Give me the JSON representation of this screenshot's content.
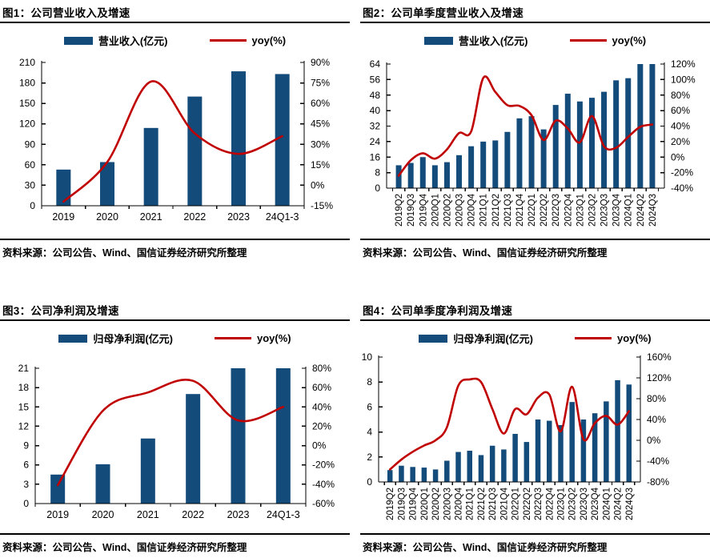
{
  "page": {
    "background": "#ffffff",
    "colors": {
      "bar": "#134B7A",
      "line": "#C00000",
      "axis": "#000000",
      "text": "#000000"
    }
  },
  "chart_data": [
    {
      "id": "fig1",
      "type": "bar+line",
      "title": "图1：公司营业收入及增速",
      "source": "资料来源：公司公告、Wind、国信证券经济研究所整理",
      "categories": [
        "2019",
        "2020",
        "2021",
        "2022",
        "2023",
        "24Q1-3"
      ],
      "series": [
        {
          "name": "营业收入(亿元)",
          "type": "bar",
          "axis": "left",
          "values": [
            53,
            64,
            114,
            160,
            197,
            193
          ]
        },
        {
          "name": "yoy(%)",
          "type": "line",
          "axis": "right",
          "values": [
            -12,
            17,
            76,
            38,
            23,
            36
          ]
        }
      ],
      "left_axis": {
        "min": 0,
        "max": 210,
        "step": 30,
        "ticks": [
          "0",
          "30",
          "60",
          "90",
          "120",
          "150",
          "180",
          "210"
        ]
      },
      "right_axis": {
        "min": -15,
        "max": 90,
        "step": 15,
        "ticks": [
          "-15%",
          "0%",
          "15%",
          "30%",
          "45%",
          "60%",
          "75%",
          "90%"
        ]
      },
      "rotate_x_labels": false,
      "legend_position": "top"
    },
    {
      "id": "fig2",
      "type": "bar+line",
      "title": "图2：公司单季度营业收入及增速",
      "source": "资料来源：公司公告、Wind、国信证券经济研究所整理",
      "categories": [
        "2019Q2",
        "2019Q3",
        "2019Q4",
        "2020Q1",
        "2020Q2",
        "2020Q3",
        "2020Q4",
        "2021Q1",
        "2021Q2",
        "2021Q3",
        "2021Q4",
        "2022Q1",
        "2022Q2",
        "2022Q3",
        "2022Q4",
        "2023Q1",
        "2023Q2",
        "2023Q3",
        "2023Q4",
        "2024Q1",
        "2024Q2",
        "2024Q3"
      ],
      "series": [
        {
          "name": "营业收入(亿元)",
          "type": "bar",
          "axis": "left",
          "values": [
            11.8,
            13.0,
            16.0,
            11.8,
            13.4,
            17.0,
            21.6,
            24.0,
            24.6,
            29.0,
            36.0,
            37.1,
            30.3,
            42.9,
            48.7,
            44.7,
            46.6,
            49.7,
            55.6,
            56.7,
            64.0,
            64.0
          ]
        },
        {
          "name": "yoy(%)",
          "type": "line",
          "axis": "right",
          "values": [
            -24,
            -4,
            5,
            -2,
            10,
            31,
            33,
            102,
            84,
            67,
            66,
            54,
            22,
            47,
            37,
            19,
            53,
            14,
            12,
            26,
            39,
            42
          ]
        }
      ],
      "left_axis": {
        "min": 0,
        "max": 64,
        "step": 8,
        "ticks": [
          "0",
          "8",
          "16",
          "24",
          "32",
          "40",
          "48",
          "56",
          "64"
        ]
      },
      "right_axis": {
        "min": -40,
        "max": 120,
        "step": 20,
        "ticks": [
          "-40%",
          "-20%",
          "0%",
          "20%",
          "40%",
          "60%",
          "80%",
          "100%",
          "120%"
        ]
      },
      "rotate_x_labels": true,
      "legend_position": "top"
    },
    {
      "id": "fig3",
      "type": "bar+line",
      "title": "图3：公司净利润及增速",
      "source": "资料来源：公司公告、Wind、国信证券经济研究所整理",
      "categories": [
        "2019",
        "2020",
        "2021",
        "2022",
        "2023",
        "24Q1-3"
      ],
      "series": [
        {
          "name": "归母净利润(亿元)",
          "type": "bar",
          "axis": "left",
          "values": [
            4.5,
            6.1,
            10.1,
            17.0,
            21.0,
            21.0
          ]
        },
        {
          "name": "yoy(%)",
          "type": "line",
          "axis": "right",
          "values": [
            -41,
            36,
            55,
            67,
            26,
            40
          ]
        }
      ],
      "left_axis": {
        "min": 0,
        "max": 21,
        "step": 3,
        "ticks": [
          "0",
          "3",
          "6",
          "9",
          "12",
          "15",
          "18",
          "21"
        ]
      },
      "right_axis": {
        "min": -60,
        "max": 80,
        "step": 20,
        "ticks": [
          "-60%",
          "-40%",
          "-20%",
          "0%",
          "20%",
          "40%",
          "60%",
          "80%"
        ]
      },
      "rotate_x_labels": false,
      "legend_position": "top"
    },
    {
      "id": "fig4",
      "type": "bar+line",
      "title": "图4：公司单季度净利润及增速",
      "source": "资料来源：公司公告、Wind、国信证券经济研究所整理",
      "categories": [
        "2019Q2",
        "2019Q3",
        "2019Q4",
        "2020Q1",
        "2020Q2",
        "2020Q3",
        "2020Q4",
        "2021Q1",
        "2021Q2",
        "2021Q3",
        "2021Q4",
        "2022Q1",
        "2022Q2",
        "2022Q3",
        "2022Q4",
        "2023Q1",
        "2023Q2",
        "2023Q3",
        "2023Q4",
        "2024Q1",
        "2024Q2",
        "2024Q3"
      ],
      "series": [
        {
          "name": "归母净利润(亿元)",
          "type": "bar",
          "axis": "left",
          "values": [
            0.95,
            1.3,
            1.2,
            1.15,
            1.0,
            1.7,
            2.4,
            2.5,
            2.15,
            2.9,
            2.6,
            3.85,
            3.2,
            5.0,
            4.9,
            4.55,
            6.4,
            5.0,
            5.5,
            6.45,
            8.15,
            7.8
          ]
        },
        {
          "name": "yoy(%)",
          "type": "line",
          "axis": "right",
          "values": [
            -56,
            -37,
            -22,
            -10,
            0,
            25,
            105,
            117,
            112,
            60,
            13,
            60,
            50,
            82,
            88,
            17,
            103,
            2,
            33,
            47,
            30,
            56
          ]
        }
      ],
      "left_axis": {
        "min": 0,
        "max": 10,
        "step": 2,
        "ticks": [
          "0",
          "2",
          "4",
          "6",
          "8",
          "10"
        ]
      },
      "right_axis": {
        "min": -80,
        "max": 160,
        "step": 40,
        "ticks": [
          "-80%",
          "-40%",
          "0%",
          "40%",
          "80%",
          "120%",
          "160%"
        ]
      },
      "rotate_x_labels": true,
      "legend_position": "top"
    }
  ]
}
